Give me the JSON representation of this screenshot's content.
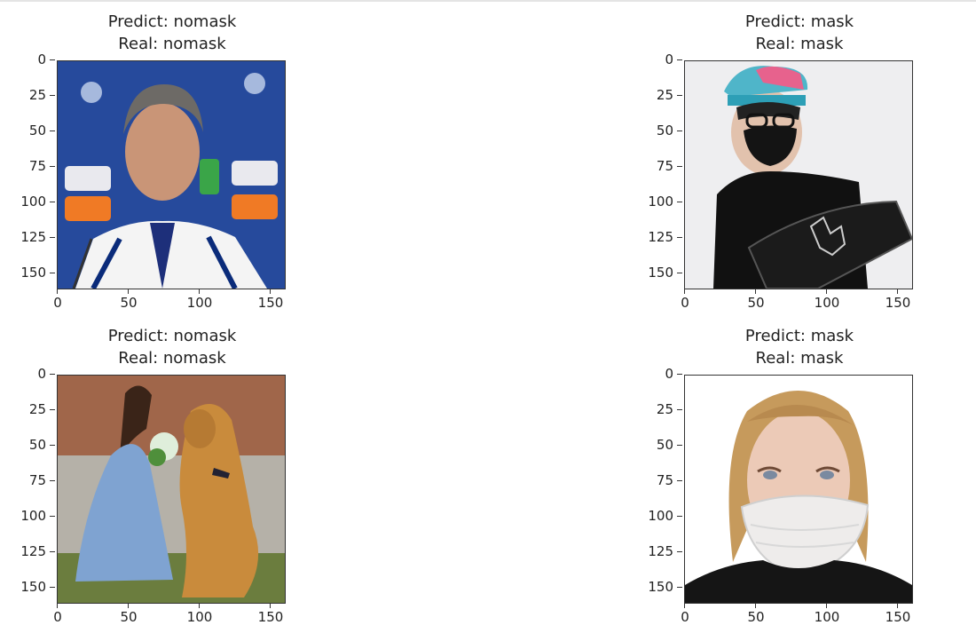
{
  "panels": [
    {
      "predict": "Predict: nomask",
      "real": "Real: nomask",
      "image": "man-at-press-conference"
    },
    {
      "predict": "Predict: mask",
      "real": "Real: mask",
      "image": "person-with-black-mask-and-cap"
    },
    {
      "predict": "Predict: nomask",
      "real": "Real: nomask",
      "image": "woman-with-golden-retriever"
    },
    {
      "predict": "Predict: mask",
      "real": "Real: mask",
      "image": "woman-with-white-mask"
    }
  ],
  "y_ticks": [
    "0",
    "25",
    "50",
    "75",
    "100",
    "125",
    "150"
  ],
  "x_ticks": [
    "0",
    "50",
    "100",
    "150"
  ]
}
